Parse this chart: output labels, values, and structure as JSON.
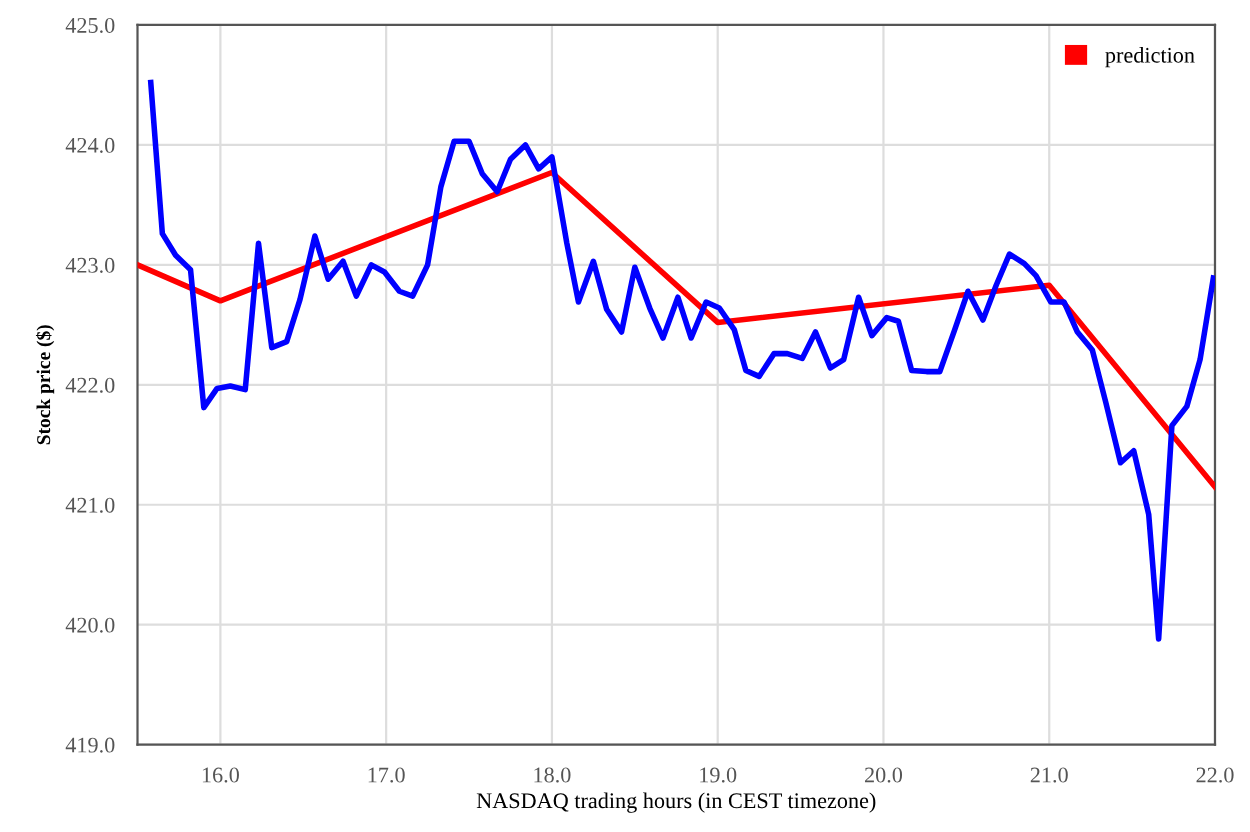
{
  "chart_data": {
    "type": "line",
    "xlabel": "NASDAQ trading hours (in CEST timezone)",
    "ylabel": "Stock price ($)",
    "xlim": [
      15.5,
      22.0
    ],
    "xticks": [
      {
        "value": 16,
        "label": "16.0"
      },
      {
        "value": 17,
        "label": "17.0"
      },
      {
        "value": 18,
        "label": "18.0"
      },
      {
        "value": 19,
        "label": "19.0"
      },
      {
        "value": 20,
        "label": "20.0"
      },
      {
        "value": 21,
        "label": "21.0"
      },
      {
        "value": 22,
        "label": "22.0"
      }
    ],
    "ylim": [
      419.0,
      425.0
    ],
    "yticks": [
      {
        "value": 419,
        "label": "419.0"
      },
      {
        "value": 420,
        "label": "420.0"
      },
      {
        "value": 421,
        "label": "421.0"
      },
      {
        "value": 422,
        "label": "422.0"
      },
      {
        "value": 423,
        "label": "423.0"
      },
      {
        "value": 424,
        "label": "424.0"
      },
      {
        "value": 425,
        "label": "425.0"
      }
    ],
    "grid": true,
    "legend": "top right",
    "series": [
      {
        "name": "prediction",
        "color": "#ff0000",
        "x": [
          15.5,
          16.0,
          18.0,
          19.0,
          21.0,
          22.0
        ],
        "values": [
          423.0,
          422.7,
          423.77,
          422.52,
          422.83,
          421.15
        ]
      },
      {
        "color": "#0000ff",
        "x": [
          15.58,
          15.65,
          15.73,
          15.82,
          15.9,
          15.98,
          16.06,
          16.15,
          16.23,
          16.31,
          16.4,
          16.48,
          16.57,
          16.65,
          16.74,
          16.82,
          16.91,
          16.99,
          17.08,
          17.16,
          17.25,
          17.33,
          17.41,
          17.5,
          17.58,
          17.67,
          17.75,
          17.84,
          17.92,
          18.0,
          18.09,
          18.16,
          18.25,
          18.33,
          18.42,
          18.5,
          18.59,
          18.67,
          18.76,
          18.84,
          18.93,
          19.01,
          19.1,
          19.17,
          19.25,
          19.34,
          19.42,
          19.51,
          19.59,
          19.68,
          19.76,
          19.85,
          19.93,
          20.02,
          20.09,
          20.17,
          20.26,
          20.34,
          20.43,
          20.51,
          20.6,
          20.68,
          20.76,
          20.85,
          20.92,
          21.01,
          21.09,
          21.17,
          21.26,
          21.34,
          21.43,
          21.51,
          21.6,
          21.66,
          21.74,
          21.83,
          21.91,
          21.99
        ],
        "values": [
          424.52,
          423.26,
          423.08,
          422.96,
          421.81,
          421.97,
          421.99,
          421.96,
          423.18,
          422.31,
          422.36,
          422.71,
          423.24,
          422.88,
          423.03,
          422.74,
          423.0,
          422.94,
          422.78,
          422.74,
          423.0,
          423.65,
          424.03,
          424.03,
          423.76,
          423.61,
          423.88,
          424.0,
          423.8,
          423.9,
          423.18,
          422.69,
          423.03,
          422.63,
          422.44,
          422.98,
          422.64,
          422.39,
          422.73,
          422.39,
          422.69,
          422.64,
          422.46,
          422.12,
          422.07,
          422.26,
          422.26,
          422.22,
          422.44,
          422.14,
          422.21,
          422.73,
          422.41,
          422.56,
          422.53,
          422.12,
          422.11,
          422.11,
          422.46,
          422.78,
          422.54,
          422.83,
          423.09,
          423.01,
          422.91,
          422.69,
          422.69,
          422.44,
          422.29,
          421.86,
          421.35,
          421.45,
          420.92,
          419.88,
          421.66,
          421.82,
          422.21,
          422.89
        ]
      }
    ]
  }
}
